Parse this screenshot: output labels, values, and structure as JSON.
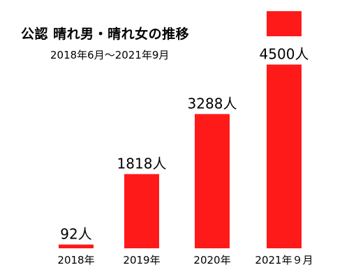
{
  "chart_data": {
    "type": "bar",
    "title": "公認 晴れ男・晴れ女の推移",
    "subtitle": "2018年6月〜2021年9月",
    "categories": [
      "2018年",
      "2019年",
      "2020年",
      "2021年９月"
    ],
    "values": [
      92,
      1818,
      3288,
      4500
    ],
    "value_labels": [
      "92人",
      "1818人",
      "3288人",
      "4500人"
    ],
    "series_color": "#ff1a1a",
    "ylim": [
      0,
      5500
    ],
    "grid": false,
    "legend": {
      "color": "#ff1a1a"
    }
  }
}
